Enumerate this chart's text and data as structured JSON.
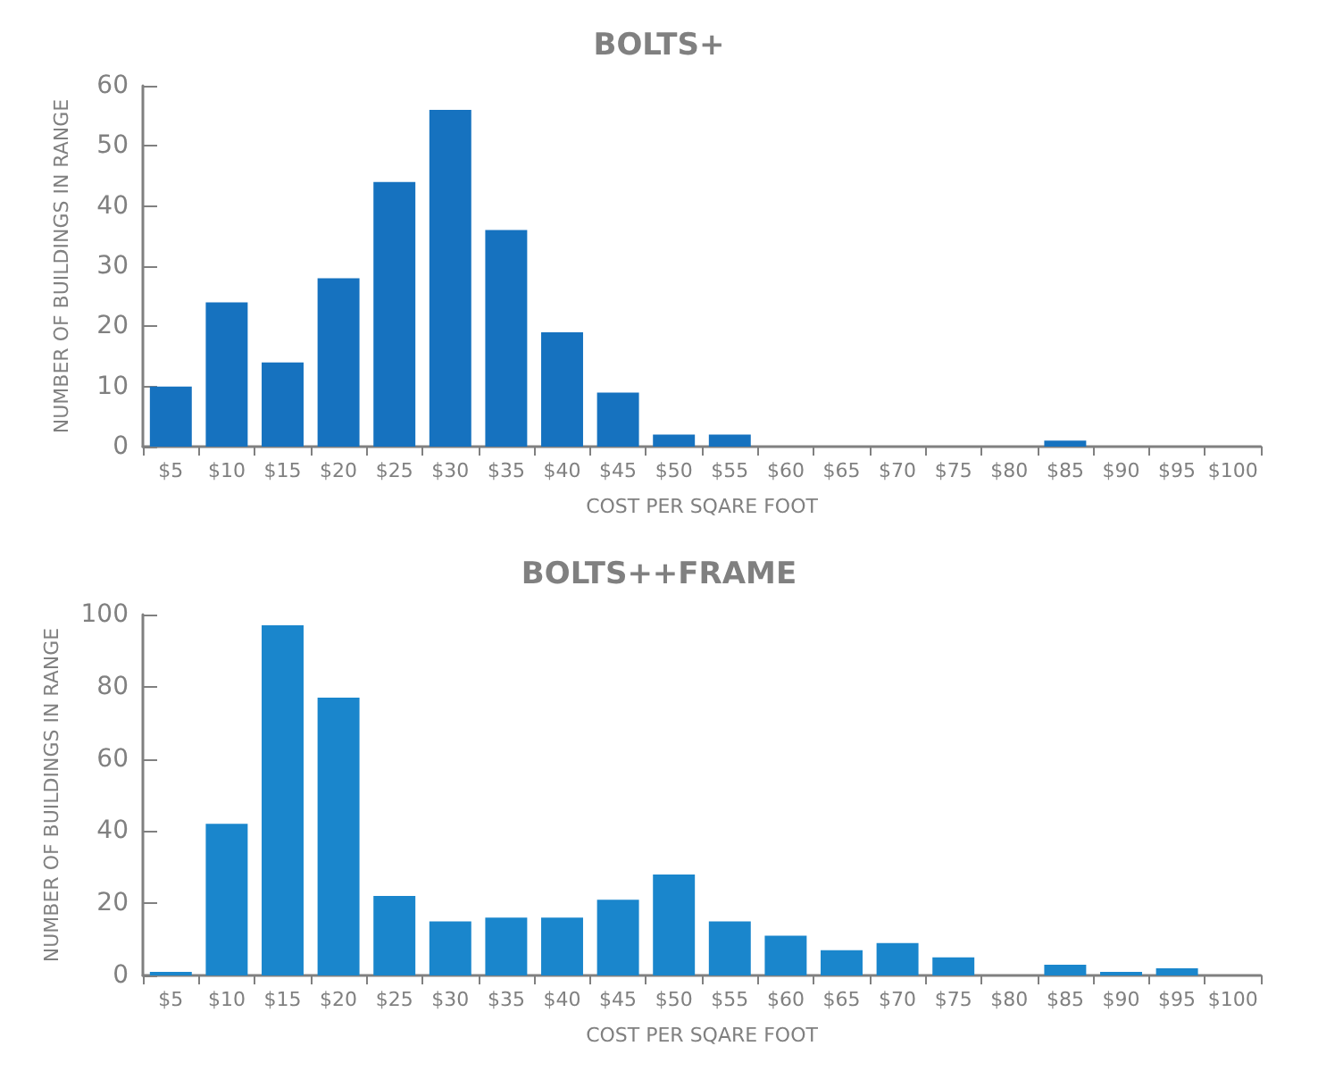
{
  "chart_data": [
    {
      "type": "bar",
      "title": "BOLTS+",
      "xlabel": "COST PER SQARE FOOT",
      "ylabel": "NUMBER OF BUILDINGS IN RANGE",
      "categories": [
        "$5",
        "$10",
        "$15",
        "$20",
        "$25",
        "$30",
        "$35",
        "$40",
        "$45",
        "$50",
        "$55",
        "$60",
        "$65",
        "$70",
        "$75",
        "$80",
        "$85",
        "$90",
        "$95",
        "$100"
      ],
      "values": [
        10,
        24,
        14,
        28,
        44,
        56,
        36,
        19,
        9,
        2,
        2,
        0,
        0,
        0,
        0,
        0,
        1,
        0,
        0,
        0
      ],
      "color": "#1672bf",
      "ylim": [
        0,
        60
      ],
      "yticks": [
        0,
        10,
        20,
        30,
        40,
        50,
        60
      ],
      "grid": false
    },
    {
      "type": "bar",
      "title": "BOLTS++FRAME",
      "xlabel": "COST PER SQARE FOOT",
      "ylabel": "NUMBER OF BUILDINGS IN RANGE",
      "categories": [
        "$5",
        "$10",
        "$15",
        "$20",
        "$25",
        "$30",
        "$35",
        "$40",
        "$45",
        "$50",
        "$55",
        "$60",
        "$65",
        "$70",
        "$75",
        "$80",
        "$85",
        "$90",
        "$95",
        "$100"
      ],
      "values": [
        1,
        42,
        97,
        77,
        22,
        15,
        16,
        16,
        21,
        28,
        15,
        11,
        7,
        9,
        5,
        0,
        3,
        1,
        2,
        0
      ],
      "color": "#1a86cc",
      "ylim": [
        0,
        100
      ],
      "yticks": [
        0,
        20,
        40,
        60,
        80,
        100
      ],
      "grid": false
    }
  ]
}
